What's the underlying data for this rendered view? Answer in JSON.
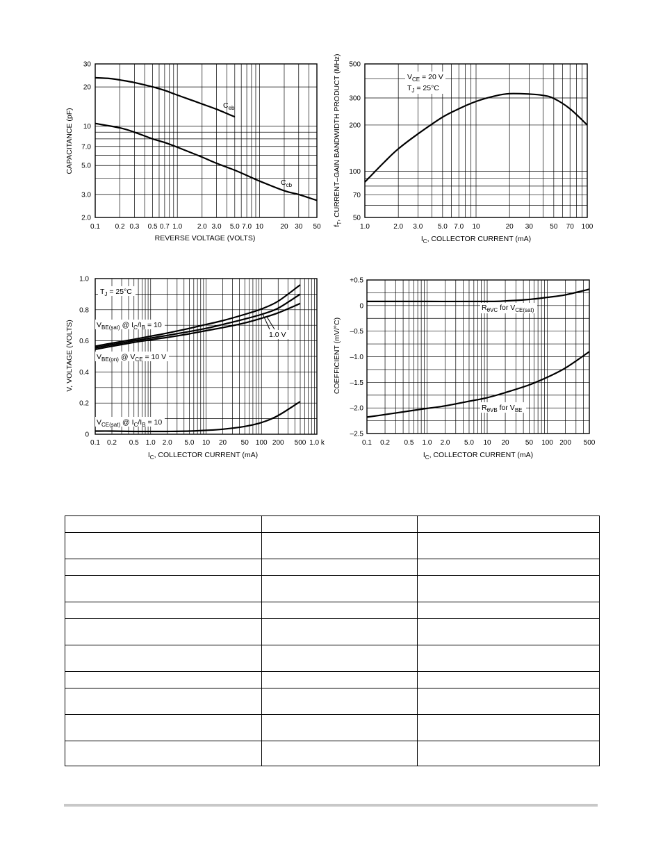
{
  "chart_data": [
    {
      "id": "capacitance",
      "type": "line",
      "xscale": "log",
      "yscale": "log",
      "xlim": [
        0.1,
        50
      ],
      "ylim": [
        2.0,
        30
      ],
      "xticks": [
        0.1,
        0.2,
        0.3,
        0.5,
        0.7,
        1.0,
        2.0,
        3.0,
        5.0,
        7.0,
        10,
        20,
        30,
        50
      ],
      "xtick_labels": [
        "0.1",
        "0.2",
        "0.3",
        "0.5",
        "0.7",
        "1.0",
        "2.0",
        "3.0",
        "5.0",
        "7.0",
        "10",
        "20",
        "30",
        "50"
      ],
      "yticks": [
        2.0,
        3.0,
        5.0,
        7.0,
        10,
        20,
        30
      ],
      "ytick_labels": [
        "2.0",
        "3.0",
        "5.0",
        "7.0",
        "10",
        "20",
        "30"
      ],
      "xlabel": "REVERSE VOLTAGE (VOLTS)",
      "ylabel": "CAPACITANCE (pF)",
      "series": [
        {
          "name": "Ceb",
          "name_main": "C",
          "name_sub": "eb",
          "x": [
            0.1,
            0.15,
            0.2,
            0.3,
            0.5,
            0.7,
            1.0,
            1.5,
            2.0,
            3.0,
            4.0,
            5.0
          ],
          "y": [
            23.5,
            23.2,
            22.6,
            21.6,
            20,
            18.8,
            17.3,
            15.8,
            14.8,
            13.5,
            12.5,
            11.8
          ]
        },
        {
          "name": "Ccb",
          "name_main": "C",
          "name_sub": "cb",
          "x": [
            0.1,
            0.2,
            0.3,
            0.5,
            0.7,
            1.0,
            2.0,
            3.0,
            5.0,
            7.0,
            10,
            20,
            30,
            50
          ],
          "y": [
            10.5,
            9.7,
            9.0,
            8.0,
            7.5,
            6.9,
            5.8,
            5.2,
            4.6,
            4.2,
            3.8,
            3.2,
            3.0,
            2.7
          ]
        }
      ]
    },
    {
      "id": "ft",
      "type": "line",
      "xscale": "log",
      "yscale": "log",
      "xlim": [
        1.0,
        100
      ],
      "ylim": [
        50,
        500
      ],
      "xticks": [
        1.0,
        2.0,
        3.0,
        5.0,
        7.0,
        10,
        20,
        30,
        50,
        70,
        100
      ],
      "xtick_labels": [
        "1.0",
        "2.0",
        "3.0",
        "5.0",
        "7.0",
        "10",
        "20",
        "30",
        "50",
        "70",
        "100"
      ],
      "yticks": [
        50,
        70,
        100,
        200,
        300,
        500
      ],
      "ytick_labels": [
        "50",
        "70",
        "100",
        "200",
        "300",
        "500"
      ],
      "xlabel_main": "I",
      "xlabel_sub": "C",
      "xlabel_rest": ", COLLECTOR CURRENT (mA)",
      "ylabel_main": "f",
      "ylabel_sub": "T",
      "ylabel_rest": ", CURRENT–GAIN BANDWIDTH PRODUCT (MHz)",
      "annotation1_main": "V",
      "annotation1_sub": "CE",
      "annotation1_rest": " = 20 V",
      "annotation2_main": "T",
      "annotation2_sub": "J",
      "annotation2_rest": " = 25°C",
      "series": [
        {
          "name": "fT",
          "x": [
            1.0,
            1.5,
            2.0,
            3.0,
            5.0,
            7.0,
            10,
            15,
            20,
            30,
            40,
            50,
            70,
            100
          ],
          "y": [
            85,
            115,
            140,
            175,
            225,
            255,
            285,
            310,
            320,
            318,
            312,
            298,
            255,
            200
          ]
        }
      ]
    },
    {
      "id": "voltage",
      "type": "line",
      "xscale": "log",
      "yscale": "linear",
      "xlim": [
        0.1,
        1000
      ],
      "ylim": [
        0,
        1.0
      ],
      "xticks": [
        0.1,
        0.2,
        0.5,
        1.0,
        2.0,
        5.0,
        10,
        20,
        50,
        100,
        200,
        500,
        1000
      ],
      "xtick_labels": [
        "0.1",
        "0.2",
        "0.5",
        "1.0",
        "2.0",
        "5.0",
        "10",
        "20",
        "50",
        "100",
        "200",
        "500",
        "1.0 k"
      ],
      "yticks": [
        0,
        0.2,
        0.4,
        0.6,
        0.8,
        1.0
      ],
      "ytick_labels": [
        "0",
        "0.2",
        "0.4",
        "0.6",
        "0.8",
        "1.0"
      ],
      "xlabel_main": "I",
      "xlabel_sub": "C",
      "xlabel_rest": ", COLLECTOR CURRENT (mA)",
      "ylabel": "V, VOLTAGE (VOLTS)",
      "annotation_tj_main": "T",
      "annotation_tj_sub": "J",
      "annotation_tj_rest": " = 25°C",
      "annotation_1v": "1.0 V",
      "label_vbesat": {
        "p1": "V",
        "s1": "BE(sat)",
        "p2": " @ I",
        "s2": "C",
        "p3": "/I",
        "s3": "B",
        "p4": " = 10"
      },
      "label_vbeon": {
        "p1": "V",
        "s1": "BE(on)",
        "p2": " @ V",
        "s2": "CE",
        "p3": " = 10 V"
      },
      "label_vcesat": {
        "p1": "V",
        "s1": "CE(sat)",
        "p2": " @ I",
        "s2": "C",
        "p3": "/I",
        "s3": "B",
        "p4": " = 10"
      },
      "series": [
        {
          "name": "VBE(sat)",
          "x": [
            0.1,
            0.2,
            0.5,
            1,
            2,
            5,
            10,
            20,
            50,
            100,
            200,
            500
          ],
          "y": [
            0.565,
            0.585,
            0.61,
            0.63,
            0.65,
            0.68,
            0.705,
            0.73,
            0.77,
            0.805,
            0.855,
            0.96
          ]
        },
        {
          "name": "VBE(on) 10 V",
          "x": [
            0.1,
            0.2,
            0.5,
            1,
            2,
            5,
            10,
            20,
            50,
            100,
            200,
            500
          ],
          "y": [
            0.555,
            0.575,
            0.6,
            0.618,
            0.635,
            0.66,
            0.68,
            0.705,
            0.74,
            0.77,
            0.81,
            0.9
          ]
        },
        {
          "name": "VBE(on) 1.0 V",
          "x": [
            0.1,
            0.2,
            0.5,
            1,
            2,
            5,
            10,
            20,
            50,
            100,
            200,
            500
          ],
          "y": [
            0.545,
            0.565,
            0.59,
            0.607,
            0.622,
            0.645,
            0.665,
            0.685,
            0.715,
            0.745,
            0.78,
            0.84
          ]
        },
        {
          "name": "VCE(sat)",
          "x": [
            0.1,
            0.2,
            0.5,
            1,
            2,
            5,
            10,
            20,
            50,
            100,
            200,
            500
          ],
          "y": [
            0.02,
            0.02,
            0.018,
            0.018,
            0.018,
            0.02,
            0.025,
            0.032,
            0.05,
            0.075,
            0.12,
            0.21
          ]
        }
      ]
    },
    {
      "id": "coefficient",
      "type": "line",
      "xscale": "log",
      "yscale": "linear",
      "xlim": [
        0.1,
        500
      ],
      "ylim": [
        -2.5,
        0.5
      ],
      "xticks": [
        0.1,
        0.2,
        0.5,
        1.0,
        2.0,
        5.0,
        10,
        20,
        50,
        100,
        200,
        500
      ],
      "xtick_labels": [
        "0.1",
        "0.2",
        "0.5",
        "1.0",
        "2.0",
        "5.0",
        "10",
        "20",
        "50",
        "100",
        "200",
        "500"
      ],
      "yticks": [
        -2.5,
        -2.0,
        -1.5,
        -1.0,
        -0.5,
        0,
        0.5
      ],
      "ytick_labels": [
        "–2.5",
        "–2.0",
        "–1.5",
        "–1.0",
        "–0.5",
        "0",
        "+0.5"
      ],
      "xlabel_main": "I",
      "xlabel_sub": "C",
      "xlabel_rest": ", COLLECTOR CURRENT (mA)",
      "ylabel": "COEFFICIENT (mV/°C)",
      "label_rvc": {
        "p1": "R",
        "s1": "θVC",
        "p2": " for V",
        "s2": "CE(sat)"
      },
      "label_rvb": {
        "p1": "R",
        "s1": "θVB",
        "p2": " for V",
        "s2": "BE"
      },
      "series": [
        {
          "name": "RθVC for VCE(sat)",
          "x": [
            0.1,
            1,
            10,
            20,
            50,
            100,
            200,
            500
          ],
          "y": [
            0.08,
            0.08,
            0.08,
            0.09,
            0.12,
            0.16,
            0.21,
            0.32
          ]
        },
        {
          "name": "RθVB for VBE",
          "x": [
            0.1,
            0.2,
            0.5,
            1,
            2,
            5,
            10,
            20,
            50,
            100,
            200,
            500
          ],
          "y": [
            -2.18,
            -2.13,
            -2.06,
            -2.01,
            -1.96,
            -1.87,
            -1.8,
            -1.7,
            -1.55,
            -1.4,
            -1.22,
            -0.9
          ]
        }
      ]
    }
  ]
}
